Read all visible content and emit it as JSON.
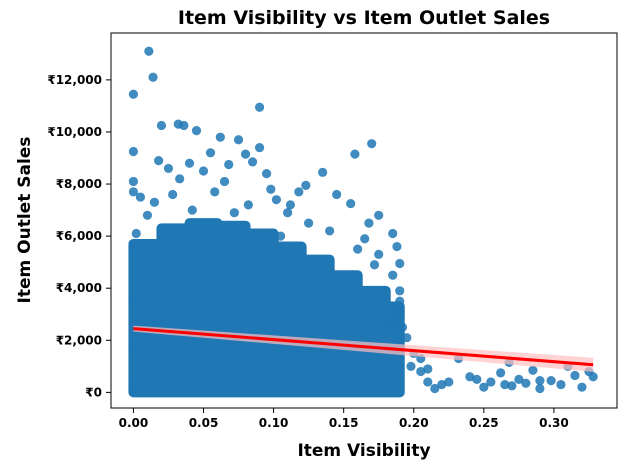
{
  "chart_data": {
    "type": "scatter",
    "title": "Item Visibility vs Item Outlet Sales",
    "xlabel": "Item Visibility",
    "ylabel": "Item Outlet Sales",
    "xlim": [
      -0.016,
      0.345
    ],
    "ylim": [
      -600,
      13800
    ],
    "x_ticks": [
      {
        "value": 0.0,
        "label": "0.00"
      },
      {
        "value": 0.05,
        "label": "0.05"
      },
      {
        "value": 0.1,
        "label": "0.10"
      },
      {
        "value": 0.15,
        "label": "0.15"
      },
      {
        "value": 0.2,
        "label": "0.20"
      },
      {
        "value": 0.25,
        "label": "0.25"
      },
      {
        "value": 0.3,
        "label": "0.30"
      }
    ],
    "y_ticks": [
      {
        "value": 0,
        "label": "₹0"
      },
      {
        "value": 2000,
        "label": "₹2,000"
      },
      {
        "value": 4000,
        "label": "₹4,000"
      },
      {
        "value": 6000,
        "label": "₹6,000"
      },
      {
        "value": 8000,
        "label": "₹8,000"
      },
      {
        "value": 10000,
        "label": "₹10,000"
      },
      {
        "value": 12000,
        "label": "₹12,000"
      }
    ],
    "grid": false,
    "series": [
      {
        "kind": "scatter",
        "color": "#1f77b4",
        "points": [
          [
            0.0,
            11450
          ],
          [
            0.011,
            13100
          ],
          [
            0.014,
            12100
          ],
          [
            0.0,
            9250
          ],
          [
            0.02,
            10250
          ],
          [
            0.032,
            10300
          ],
          [
            0.036,
            10250
          ],
          [
            0.045,
            10050
          ],
          [
            0.062,
            9800
          ],
          [
            0.09,
            10950
          ],
          [
            0.17,
            9550
          ],
          [
            0.158,
            9150
          ],
          [
            0.0,
            8100
          ],
          [
            0.0,
            7700
          ],
          [
            0.005,
            7500
          ],
          [
            0.018,
            8900
          ],
          [
            0.025,
            8600
          ],
          [
            0.033,
            8200
          ],
          [
            0.04,
            8800
          ],
          [
            0.05,
            8500
          ],
          [
            0.055,
            9200
          ],
          [
            0.068,
            8750
          ],
          [
            0.075,
            9700
          ],
          [
            0.08,
            9150
          ],
          [
            0.085,
            8850
          ],
          [
            0.095,
            8400
          ],
          [
            0.102,
            7400
          ],
          [
            0.112,
            7200
          ],
          [
            0.123,
            7950
          ],
          [
            0.135,
            8450
          ],
          [
            0.145,
            7600
          ],
          [
            0.155,
            7250
          ],
          [
            0.168,
            6500
          ],
          [
            0.175,
            6800
          ],
          [
            0.185,
            6100
          ],
          [
            0.188,
            5600
          ],
          [
            0.19,
            4950
          ],
          [
            0.185,
            4500
          ],
          [
            0.19,
            3900
          ],
          [
            0.19,
            3500
          ],
          [
            0.19,
            3100
          ],
          [
            0.192,
            2500
          ],
          [
            0.195,
            2100
          ],
          [
            0.2,
            1500
          ],
          [
            0.205,
            1300
          ],
          [
            0.205,
            800
          ],
          [
            0.21,
            400
          ],
          [
            0.215,
            150
          ],
          [
            0.225,
            400
          ],
          [
            0.232,
            1300
          ],
          [
            0.24,
            600
          ],
          [
            0.25,
            200
          ],
          [
            0.255,
            400
          ],
          [
            0.262,
            750
          ],
          [
            0.268,
            1150
          ],
          [
            0.27,
            250
          ],
          [
            0.275,
            500
          ],
          [
            0.28,
            350
          ],
          [
            0.285,
            850
          ],
          [
            0.29,
            150
          ],
          [
            0.298,
            450
          ],
          [
            0.305,
            300
          ],
          [
            0.31,
            1000
          ],
          [
            0.315,
            650
          ],
          [
            0.32,
            200
          ],
          [
            0.325,
            800
          ],
          [
            0.328,
            600
          ],
          [
            0.29,
            450
          ],
          [
            0.265,
            300
          ],
          [
            0.245,
            500
          ],
          [
            0.22,
            300
          ],
          [
            0.21,
            900
          ],
          [
            0.198,
            1000
          ],
          [
            0.19,
            1800
          ],
          [
            0.183,
            2700
          ],
          [
            0.175,
            5300
          ],
          [
            0.165,
            5900
          ],
          [
            0.172,
            4900
          ],
          [
            0.16,
            5500
          ],
          [
            0.14,
            6200
          ],
          [
            0.125,
            6500
          ],
          [
            0.11,
            6900
          ],
          [
            0.118,
            7700
          ],
          [
            0.098,
            7800
          ],
          [
            0.105,
            6000
          ],
          [
            0.01,
            6800
          ],
          [
            0.015,
            7300
          ],
          [
            0.028,
            7600
          ],
          [
            0.042,
            7000
          ],
          [
            0.058,
            7700
          ],
          [
            0.072,
            6900
          ],
          [
            0.082,
            7200
          ],
          [
            0.065,
            8100
          ],
          [
            0.09,
            9400
          ],
          [
            0.002,
            6100
          ],
          [
            0.0,
            5600
          ],
          [
            0.0,
            3500
          ],
          [
            0.0,
            1800
          ],
          [
            0.0,
            300
          ],
          [
            0.0,
            120
          ]
        ]
      }
    ],
    "cloud_bins": [
      {
        "x": [
          0.0,
          0.02
        ],
        "max": 5700
      },
      {
        "x": [
          0.02,
          0.04
        ],
        "max": 6300
      },
      {
        "x": [
          0.04,
          0.06
        ],
        "max": 6500
      },
      {
        "x": [
          0.06,
          0.08
        ],
        "max": 6400
      },
      {
        "x": [
          0.08,
          0.1
        ],
        "max": 6100
      },
      {
        "x": [
          0.1,
          0.12
        ],
        "max": 5600
      },
      {
        "x": [
          0.12,
          0.14
        ],
        "max": 5100
      },
      {
        "x": [
          0.14,
          0.16
        ],
        "max": 4500
      },
      {
        "x": [
          0.16,
          0.18
        ],
        "max": 3900
      },
      {
        "x": [
          0.18,
          0.19
        ],
        "max": 3300
      }
    ],
    "regression": {
      "color": "#ff0000",
      "ci_color": "#ffc0c0",
      "x": [
        0.0,
        0.328
      ],
      "y": [
        2450,
        1060
      ]
    }
  }
}
